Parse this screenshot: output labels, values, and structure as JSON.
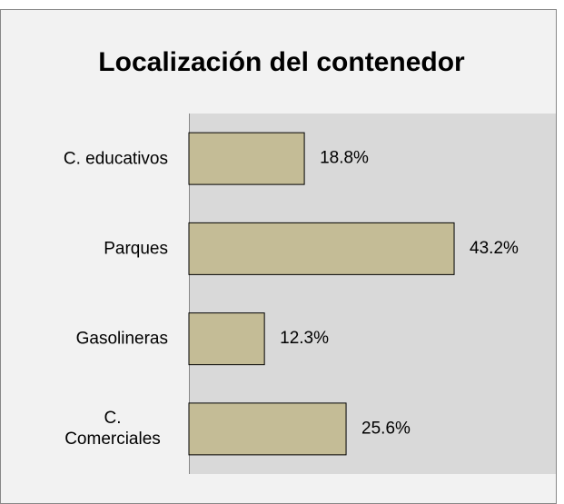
{
  "chart_data": {
    "type": "bar",
    "orientation": "horizontal",
    "title": "Localización del contenedor",
    "categories": [
      "C. educativos",
      "Parques",
      "Gasolineras",
      "C. Comerciales"
    ],
    "values": [
      18.8,
      43.2,
      12.3,
      25.6
    ],
    "value_labels": [
      "18.8%",
      "43.2%",
      "12.3%",
      "25.6%"
    ],
    "color": "#c4bc96"
  }
}
